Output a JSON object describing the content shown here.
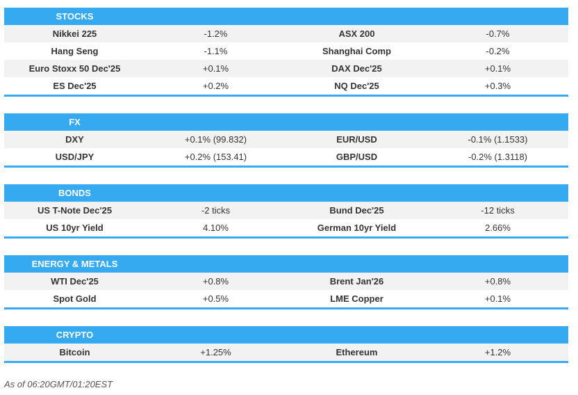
{
  "sections": [
    {
      "title": "STOCKS",
      "rows": [
        [
          "Nikkei 225",
          "-1.2%",
          "ASX 200",
          "-0.7%"
        ],
        [
          "Hang Seng",
          "-1.1%",
          "Shanghai Comp",
          "-0.2%"
        ],
        [
          "Euro Stoxx 50 Dec'25",
          "+0.1%",
          "DAX Dec'25",
          "+0.1%"
        ],
        [
          "ES Dec'25",
          "+0.2%",
          "NQ Dec'25",
          "+0.3%"
        ]
      ]
    },
    {
      "title": "FX",
      "rows": [
        [
          "DXY",
          "+0.1% (99.832)",
          "EUR/USD",
          "-0.1% (1.1533)"
        ],
        [
          "USD/JPY",
          "+0.2% (153.41)",
          "GBP/USD",
          "-0.2% (1.3118)"
        ]
      ]
    },
    {
      "title": "BONDS",
      "rows": [
        [
          "US T-Note Dec'25",
          "-2 ticks",
          "Bund Dec'25",
          "-12 ticks"
        ],
        [
          "US 10yr Yield",
          "4.10%",
          "German 10yr Yield",
          "2.66%"
        ]
      ]
    },
    {
      "title": "ENERGY & METALS",
      "rows": [
        [
          "WTI Dec'25",
          "+0.8%",
          "Brent Jan'26",
          "+0.8%"
        ],
        [
          "Spot Gold",
          "+0.5%",
          "LME Copper",
          "+0.1%"
        ]
      ]
    },
    {
      "title": "CRYPTO",
      "rows": [
        [
          "Bitcoin",
          "+1.25%",
          "Ethereum",
          "+1.2%"
        ]
      ]
    }
  ],
  "footer": "As of 06:20GMT/01:20EST",
  "colors": {
    "accent": "#35aaf0",
    "row_alt": "#f2f2f2"
  }
}
